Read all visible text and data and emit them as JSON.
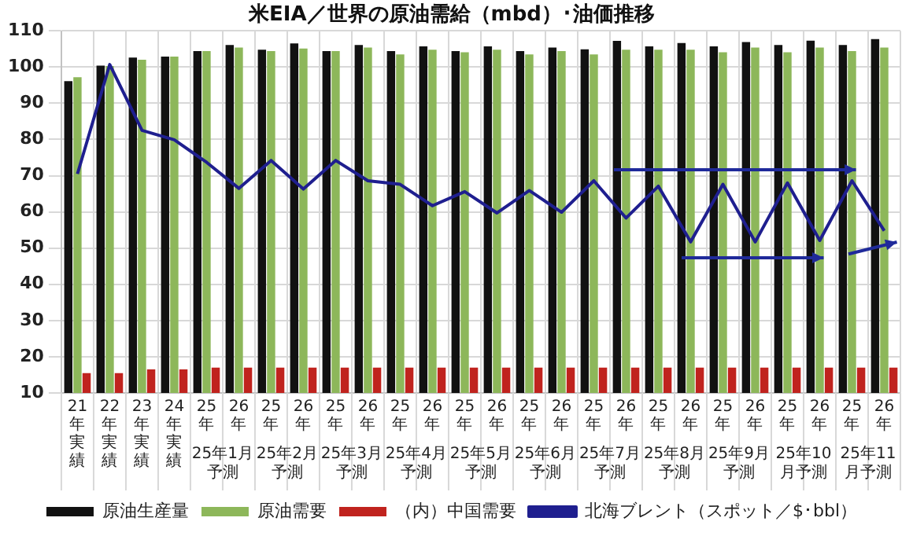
{
  "chart_data": {
    "type": "bar",
    "title": "米EIA／世界の原油需給（mbd）･油価推移",
    "categories": [
      "21年実績",
      "22年実績",
      "23年実績",
      "24年実績",
      "25年",
      "26年",
      "25年",
      "26年",
      "25年",
      "26年",
      "25年",
      "26年",
      "25年",
      "26年",
      "25年",
      "26年",
      "25年",
      "26年",
      "25年",
      "26年",
      "25年",
      "26年",
      "25年",
      "26年",
      "25年",
      "26年"
    ],
    "series": [
      {
        "name": "原油生産量",
        "color": "#111111",
        "values": [
          96.1,
          100.4,
          102.6,
          102.9,
          104.4,
          106.1,
          104.8,
          106.5,
          104.4,
          106.1,
          104.4,
          105.7,
          104.4,
          105.7,
          104.4,
          105.4,
          104.9,
          107.2,
          105.7,
          106.6,
          105.7,
          106.9,
          106.1,
          107.3,
          106.1,
          107.7
        ]
      },
      {
        "name": "原油需要",
        "color": "#8db75a",
        "values": [
          97.2,
          100.3,
          102.0,
          102.9,
          104.4,
          105.4,
          104.4,
          105.1,
          104.4,
          105.4,
          103.5,
          104.8,
          104.1,
          104.8,
          103.5,
          104.4,
          103.5,
          104.8,
          104.8,
          104.8,
          104.1,
          105.4,
          104.1,
          105.4,
          104.4,
          105.4
        ]
      },
      {
        "name": "（内）中国需要",
        "color": "#c0231e",
        "values": [
          15.5,
          15.5,
          16.5,
          16.5,
          17,
          17,
          17,
          17,
          17,
          17,
          17,
          17,
          17,
          17,
          17,
          17,
          17,
          17,
          17,
          17,
          17,
          17,
          17,
          17,
          17,
          17
        ]
      },
      {
        "name": "北海ブレント（スポット／$･bbl）",
        "type": "line",
        "color": "#1f1f8f",
        "values": [
          70.5,
          100.7,
          82.5,
          79.9,
          73.7,
          66.5,
          74.2,
          66.3,
          74.2,
          68.6,
          67.6,
          61.7,
          65.6,
          59.7,
          65.9,
          59.9,
          68.6,
          58.3,
          67.1,
          51.7,
          67.6,
          51.7,
          68.0,
          52.1,
          68.6,
          54.8
        ]
      }
    ],
    "ylim": [
      10,
      110
    ],
    "yticks": [
      10,
      20,
      30,
      40,
      50,
      60,
      70,
      80,
      90,
      100,
      110
    ],
    "grid": true,
    "legend": "bottom",
    "marker": "none",
    "annotations": [
      "25年1月予測",
      "25年2月予測",
      "25年3月予測",
      "25年4月予測",
      "25年5月予測",
      "25年6月予測",
      "25年7月予測",
      "25年8月予測",
      "25年9月予測",
      "25年10月予測",
      "25年11月予測"
    ]
  }
}
